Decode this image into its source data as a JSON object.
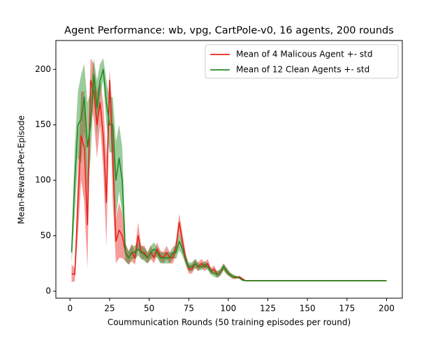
{
  "chart_data": {
    "type": "line",
    "title": "Agent Performance: wb, vpg, CartPole-v0, 16 agents, 200 rounds",
    "x_label": "Coummunication Rounds (50 training episodes per round)",
    "y_label": "Mean-Reward-Per-Episode",
    "x": [
      1,
      3,
      5,
      7,
      9,
      11,
      13,
      15,
      17,
      19,
      21,
      23,
      25,
      27,
      29,
      31,
      33,
      35,
      37,
      39,
      41,
      43,
      45,
      47,
      49,
      51,
      53,
      55,
      57,
      59,
      61,
      63,
      65,
      67,
      69,
      71,
      73,
      75,
      77,
      79,
      81,
      83,
      85,
      87,
      89,
      91,
      93,
      95,
      97,
      99,
      101,
      103,
      105,
      107,
      109,
      111,
      200
    ],
    "series": [
      {
        "name": "Mean of 4 Malicous Agent +- std",
        "color": "#e8231c",
        "values": [
          16,
          15,
          80,
          140,
          130,
          60,
          190,
          180,
          150,
          170,
          140,
          80,
          190,
          120,
          45,
          55,
          50,
          35,
          30,
          35,
          30,
          50,
          35,
          35,
          30,
          35,
          30,
          38,
          32,
          30,
          35,
          30,
          30,
          40,
          62,
          45,
          30,
          20,
          20,
          25,
          22,
          25,
          22,
          25,
          18,
          20,
          15,
          17,
          22,
          18,
          15,
          13,
          12,
          13,
          11,
          9.5,
          9.5
        ],
        "std": [
          8,
          6,
          30,
          40,
          50,
          40,
          20,
          25,
          30,
          20,
          30,
          40,
          10,
          40,
          20,
          25,
          20,
          8,
          6,
          8,
          6,
          12,
          6,
          6,
          5,
          6,
          5,
          6,
          5,
          5,
          6,
          5,
          5,
          6,
          8,
          8,
          5,
          4,
          4,
          4,
          4,
          4,
          4,
          4,
          3,
          3,
          3,
          3,
          3,
          3,
          2,
          2,
          1,
          1,
          1,
          0.5,
          0.5
        ]
      },
      {
        "name": "Mean of 12 Clean Agents +- std",
        "color": "#228b22",
        "values": [
          35,
          100,
          150,
          155,
          175,
          130,
          150,
          195,
          165,
          190,
          200,
          170,
          150,
          150,
          100,
          120,
          100,
          35,
          30,
          35,
          35,
          38,
          35,
          33,
          30,
          35,
          38,
          35,
          30,
          30,
          30,
          30,
          35,
          35,
          45,
          38,
          28,
          22,
          22,
          25,
          22,
          22,
          24,
          22,
          18,
          16,
          15,
          17,
          22,
          18,
          15,
          13,
          13,
          12,
          10,
          9.5,
          9.5
        ],
        "std": [
          10,
          30,
          30,
          40,
          30,
          40,
          30,
          15,
          25,
          15,
          10,
          20,
          25,
          25,
          35,
          30,
          30,
          8,
          6,
          6,
          6,
          6,
          6,
          6,
          5,
          6,
          6,
          5,
          5,
          5,
          5,
          5,
          5,
          6,
          8,
          6,
          4,
          4,
          4,
          4,
          3,
          3,
          3,
          3,
          3,
          3,
          3,
          3,
          3,
          3,
          2,
          2,
          1,
          1,
          1,
          0.5,
          0.5
        ]
      }
    ],
    "xlim": [
      -8.95,
      209.95
    ],
    "xticks": [
      0,
      25,
      50,
      75,
      100,
      125,
      150,
      175,
      200
    ],
    "ylim": [
      -6.3,
      226
    ],
    "yticks": [
      0,
      50,
      100,
      150,
      200
    ],
    "legend": "upper right"
  }
}
